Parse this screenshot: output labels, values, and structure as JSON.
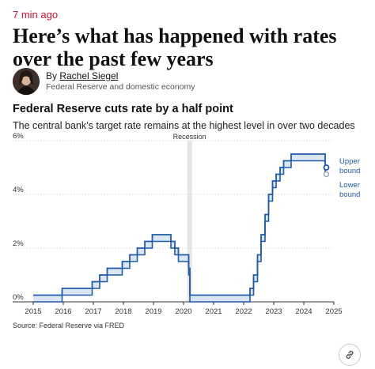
{
  "article": {
    "timestamp": "7 min ago",
    "headline": "Here’s what has happened with rates over the past few years",
    "byline_prefix": "By ",
    "author": "Rachel Siegel",
    "author_role": "Federal Reserve and domestic economy",
    "share_icon": "link-icon"
  },
  "chart_data": {
    "type": "area",
    "title": "Federal Reserve cuts rate by a half point",
    "subtitle": "The central bank’s target rate remains at the highest level in over two decades",
    "source": "Source: Federal Reserve via FRED",
    "xlim": [
      2015,
      2025
    ],
    "ylim": [
      0,
      6
    ],
    "x_ticks": [
      "2015",
      "2016",
      "2017",
      "2018",
      "2019",
      "2020",
      "2021",
      "2022",
      "2023",
      "2024",
      "2025"
    ],
    "y_ticks": [
      "0%",
      "2%",
      "4%",
      "6%"
    ],
    "grid": true,
    "annotation": {
      "label": "Recession",
      "start": 2020.12,
      "end": 2020.28
    },
    "colors": {
      "line": "#1f5aa6",
      "band": "#dbe6f5",
      "recession": "#e6e6e6",
      "lower_marker": "#9aa7b8"
    },
    "series": [
      {
        "name": "Upper bound",
        "x": [
          2015.0,
          2015.96,
          2016.96,
          2017.21,
          2017.46,
          2017.96,
          2018.21,
          2018.46,
          2018.71,
          2018.96,
          2019.58,
          2019.71,
          2019.83,
          2020.17,
          2020.21,
          2022.21,
          2022.33,
          2022.46,
          2022.58,
          2022.71,
          2022.83,
          2022.96,
          2023.08,
          2023.21,
          2023.33,
          2023.58,
          2024.71,
          2024.75
        ],
        "values": [
          0.25,
          0.5,
          0.75,
          1.0,
          1.25,
          1.5,
          1.75,
          2.0,
          2.25,
          2.5,
          2.25,
          2.0,
          1.75,
          1.25,
          0.25,
          0.5,
          1.0,
          1.75,
          2.5,
          3.25,
          4.0,
          4.5,
          4.75,
          5.0,
          5.25,
          5.5,
          5.0,
          5.0
        ],
        "end_label": "Upper bound"
      },
      {
        "name": "Lower bound",
        "x": [
          2015.0,
          2015.96,
          2016.96,
          2017.21,
          2017.46,
          2017.96,
          2018.21,
          2018.46,
          2018.71,
          2018.96,
          2019.58,
          2019.71,
          2019.83,
          2020.17,
          2020.21,
          2022.21,
          2022.33,
          2022.46,
          2022.58,
          2022.71,
          2022.83,
          2022.96,
          2023.08,
          2023.21,
          2023.33,
          2023.58,
          2024.71,
          2024.75
        ],
        "values": [
          0.0,
          0.25,
          0.5,
          0.75,
          1.0,
          1.25,
          1.5,
          1.75,
          2.0,
          2.25,
          2.0,
          1.75,
          1.5,
          1.0,
          0.0,
          0.25,
          0.75,
          1.5,
          2.25,
          3.0,
          3.75,
          4.25,
          4.5,
          4.75,
          5.0,
          5.25,
          4.75,
          4.75
        ],
        "end_label": "Lower bound"
      }
    ]
  }
}
